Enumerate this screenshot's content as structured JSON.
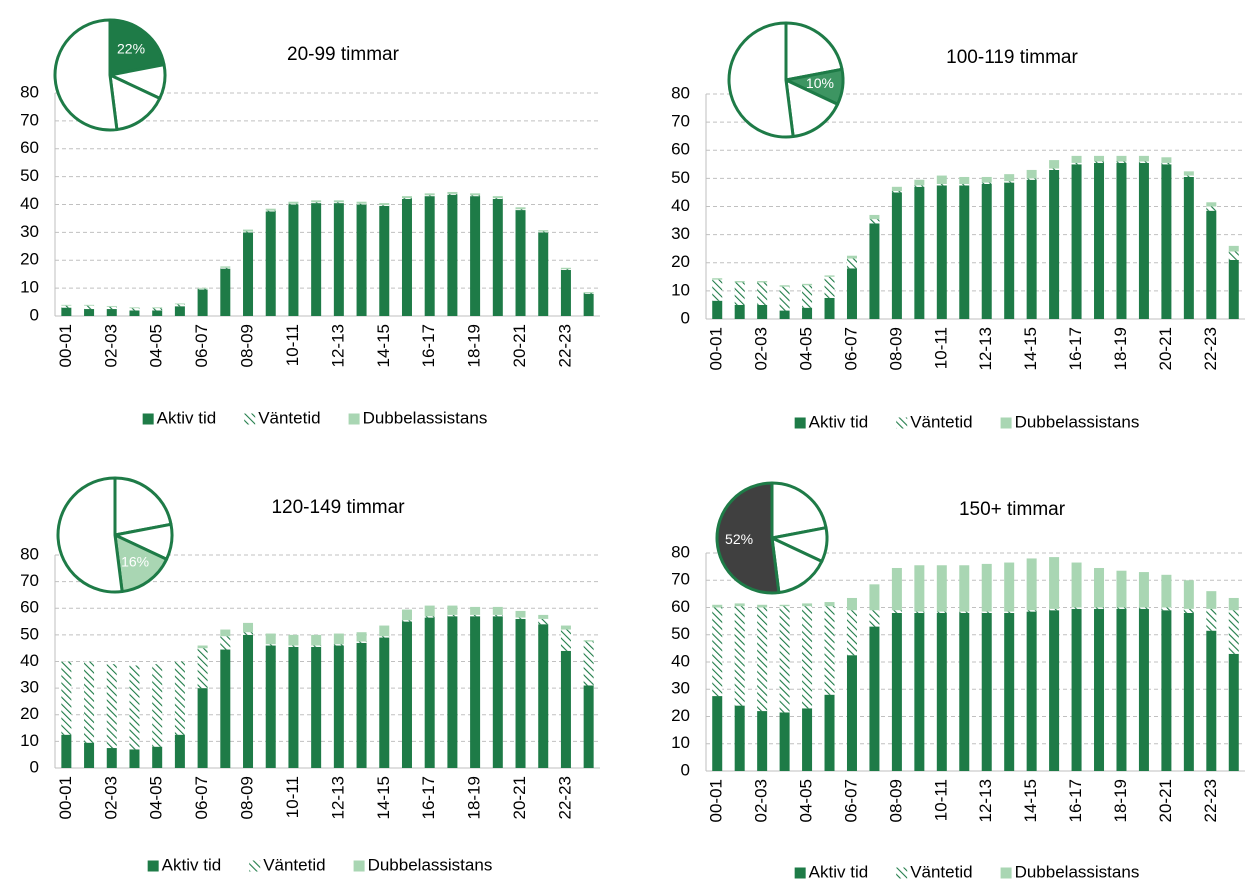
{
  "chart_data": [
    {
      "type": "bar",
      "stacked": true,
      "title": "20-99 timmar",
      "categories": [
        "00-01",
        null,
        "02-03",
        null,
        "04-05",
        null,
        "06-07",
        null,
        "08-09",
        null,
        "10-11",
        null,
        "12-13",
        null,
        "14-15",
        null,
        "16-17",
        null,
        "18-19",
        null,
        "20-21",
        null,
        "22-23",
        null
      ],
      "series": [
        {
          "name": "Aktiv tid",
          "color": "#1e7b47",
          "values": [
            3,
            2.5,
            2.5,
            2,
            2,
            3.5,
            9.5,
            17,
            30,
            37.5,
            40,
            40.5,
            40.5,
            40,
            39.5,
            42,
            43,
            43.5,
            43,
            42,
            38,
            30,
            16.5,
            8
          ]
        },
        {
          "name": "Väntetid",
          "color": "#1e7b47",
          "hatch": true,
          "values": [
            0.7,
            1.2,
            0.8,
            0.8,
            0.8,
            0.7,
            0.3,
            0.3,
            0.3,
            0.3,
            0.3,
            0.3,
            0.3,
            0.3,
            0.3,
            0.3,
            0.3,
            0.3,
            0.3,
            0.3,
            0.3,
            0.3,
            0.3,
            0.3
          ]
        },
        {
          "name": "Dubbelassistans",
          "color": "#a9d6b3",
          "values": [
            0.3,
            0.3,
            0.3,
            0.3,
            0.3,
            0.3,
            0.3,
            0.5,
            0.7,
            0.7,
            0.7,
            0.7,
            0.7,
            0.7,
            0.7,
            0.7,
            0.7,
            0.7,
            0.7,
            0.7,
            0.7,
            0.5,
            0.5,
            0.3
          ]
        }
      ],
      "ylim": [
        0,
        80
      ],
      "yticks": [
        0,
        10,
        20,
        30,
        40,
        50,
        60,
        70,
        80
      ],
      "grid": true,
      "legend": "bottom",
      "pie": {
        "values": [
          22,
          10,
          16,
          52
        ],
        "highlight": 0,
        "color": "#1e7b47",
        "label": "22%"
      }
    },
    {
      "type": "bar",
      "stacked": true,
      "title": "100-119 timmar",
      "categories": [
        "00-01",
        null,
        "02-03",
        null,
        "04-05",
        null,
        "06-07",
        null,
        "08-09",
        null,
        "10-11",
        null,
        "12-13",
        null,
        "14-15",
        null,
        "16-17",
        null,
        "18-19",
        null,
        "20-21",
        null,
        "22-23",
        null
      ],
      "series": [
        {
          "name": "Aktiv tid",
          "color": "#1e7b47",
          "values": [
            6.5,
            5,
            5,
            3,
            4,
            7.5,
            18,
            34,
            45,
            47,
            47.5,
            47.5,
            48,
            48.5,
            49.5,
            53,
            55,
            55.5,
            55.5,
            55.5,
            55,
            50.5,
            38.5,
            21
          ]
        },
        {
          "name": "Väntetid",
          "color": "#1e7b47",
          "hatch": true,
          "values": [
            7.5,
            8,
            8,
            8.5,
            8,
            7.5,
            3.5,
            1.5,
            0.5,
            0.5,
            0.5,
            0.5,
            0.5,
            0.5,
            0.5,
            0.5,
            0.5,
            0.5,
            0.5,
            0.5,
            0.5,
            0.5,
            1.5,
            3
          ]
        },
        {
          "name": "Dubbelassistans",
          "color": "#a9d6b3",
          "values": [
            0.5,
            0.5,
            0.5,
            0.5,
            0.5,
            0.5,
            1,
            1.5,
            1.5,
            2,
            3,
            2.5,
            2,
            2.5,
            3,
            3,
            2.5,
            2,
            2,
            2,
            2,
            1.5,
            1.5,
            2
          ]
        }
      ],
      "ylim": [
        0,
        80
      ],
      "yticks": [
        0,
        10,
        20,
        30,
        40,
        50,
        60,
        70,
        80
      ],
      "grid": true,
      "legend": "bottom",
      "pie": {
        "values": [
          22,
          10,
          16,
          52
        ],
        "highlight": 1,
        "color": "#3d9562",
        "label": "10%"
      }
    },
    {
      "type": "bar",
      "stacked": true,
      "title": "120-149 timmar",
      "categories": [
        "00-01",
        null,
        "02-03",
        null,
        "04-05",
        null,
        "06-07",
        null,
        "08-09",
        null,
        "10-11",
        null,
        "12-13",
        null,
        "14-15",
        null,
        "16-17",
        null,
        "18-19",
        null,
        "20-21",
        null,
        "22-23",
        null
      ],
      "series": [
        {
          "name": "Aktiv tid",
          "color": "#1e7b47",
          "values": [
            12.5,
            9.5,
            7.5,
            7,
            8,
            12.5,
            30,
            44.5,
            50,
            46,
            45.5,
            45.5,
            46,
            47,
            49,
            55,
            56.5,
            57,
            57,
            57,
            56,
            54,
            44,
            31
          ]
        },
        {
          "name": "Väntetid",
          "color": "#1e7b47",
          "hatch": true,
          "values": [
            27.5,
            30.5,
            31.5,
            31.5,
            31,
            27.5,
            15,
            5,
            1,
            0.5,
            0.5,
            0.5,
            0.5,
            0.5,
            0.5,
            0.5,
            0.5,
            0.5,
            0.5,
            0.5,
            0.5,
            2,
            8,
            16.5
          ]
        },
        {
          "name": "Dubbelassistans",
          "color": "#a9d6b3",
          "values": [
            0,
            0,
            0,
            0,
            0,
            0,
            1,
            2.5,
            3.5,
            4,
            4,
            4,
            4,
            3.5,
            4,
            4,
            4,
            3.5,
            3,
            3,
            2.5,
            1.5,
            1.5,
            0.5
          ]
        }
      ],
      "ylim": [
        0,
        80
      ],
      "yticks": [
        0,
        10,
        20,
        30,
        40,
        50,
        60,
        70,
        80
      ],
      "grid": true,
      "legend": "bottom",
      "pie": {
        "values": [
          22,
          10,
          16,
          52
        ],
        "highlight": 2,
        "color": "#a9d6b3",
        "label": "16%"
      }
    },
    {
      "type": "bar",
      "stacked": true,
      "title": "150+ timmar",
      "categories": [
        "00-01",
        null,
        "02-03",
        null,
        "04-05",
        null,
        "06-07",
        null,
        "08-09",
        null,
        "10-11",
        null,
        "12-13",
        null,
        "14-15",
        null,
        "16-17",
        null,
        "18-19",
        null,
        "20-21",
        null,
        "22-23",
        null
      ],
      "series": [
        {
          "name": "Aktiv tid",
          "color": "#1e7b47",
          "values": [
            27.5,
            24,
            22,
            21.5,
            23,
            28,
            42.5,
            53,
            58,
            58,
            58,
            58,
            58,
            58,
            58.5,
            59,
            59.5,
            59.5,
            59.5,
            59.5,
            59,
            58,
            51.5,
            43
          ]
        },
        {
          "name": "Väntetid",
          "color": "#1e7b47",
          "hatch": true,
          "values": [
            32.5,
            36.5,
            38,
            39,
            37.5,
            32.5,
            16.5,
            6,
            1,
            0.5,
            0.5,
            0.5,
            0.5,
            0.5,
            0.5,
            0.5,
            0.5,
            0.5,
            0.5,
            0.5,
            1,
            1.5,
            8,
            16
          ]
        },
        {
          "name": "Dubbelassistans",
          "color": "#a9d6b3",
          "values": [
            1,
            1,
            1,
            0.5,
            1,
            1.5,
            4.5,
            9.5,
            15.5,
            17,
            17,
            17,
            17.5,
            18,
            19,
            19,
            16.5,
            14.5,
            13.5,
            13,
            12,
            10.5,
            6.5,
            4.5
          ]
        }
      ],
      "ylim": [
        0,
        80
      ],
      "yticks": [
        0,
        10,
        20,
        30,
        40,
        50,
        60,
        70,
        80
      ],
      "grid": true,
      "legend": "bottom",
      "pie": {
        "values": [
          22,
          10,
          16,
          52
        ],
        "highlight": 3,
        "color": "#404040",
        "label": "52%"
      }
    }
  ]
}
